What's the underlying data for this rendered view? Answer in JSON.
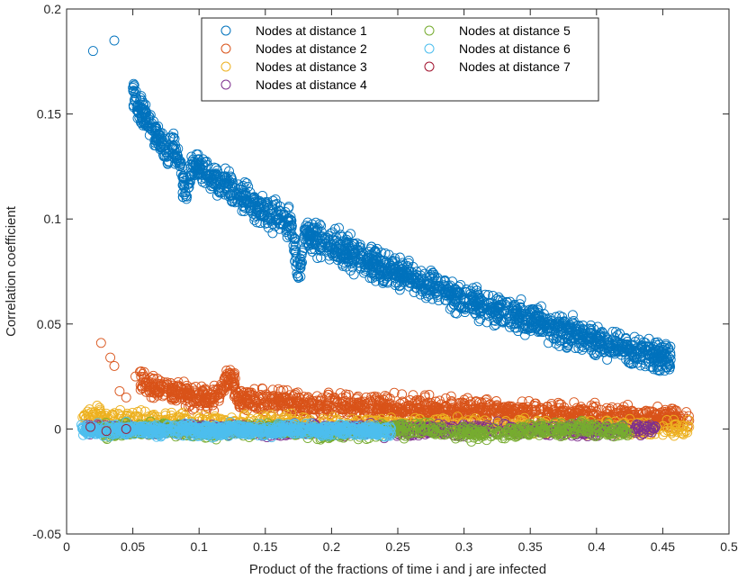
{
  "chart_data": {
    "type": "scatter",
    "title": "",
    "xlabel": "Product of the fractions of time i and j are infected",
    "ylabel": "Correlation coefficient",
    "xlim": [
      0,
      0.5
    ],
    "ylim": [
      -0.05,
      0.2
    ],
    "xticks": [
      0,
      0.05,
      0.1,
      0.15,
      0.2,
      0.25,
      0.3,
      0.35,
      0.4,
      0.45,
      0.5
    ],
    "xtick_labels": [
      "0",
      "0.05",
      "0.1",
      "0.15",
      "0.2",
      "0.25",
      "0.3",
      "0.35",
      "0.4",
      "0.45",
      "0.5"
    ],
    "yticks": [
      -0.05,
      0,
      0.05,
      0.1,
      0.15,
      0.2
    ],
    "ytick_labels": [
      "-0.05",
      "0",
      "0.05",
      "0.1",
      "0.15",
      "0.2"
    ],
    "grid": false,
    "legend_position": "top-center",
    "series": [
      {
        "name": "Nodes at distance 1",
        "color": "#0072BD",
        "points": [
          [
            0.02,
            0.18
          ],
          [
            0.036,
            0.185
          ],
          [
            0.052,
            0.158
          ],
          [
            0.055,
            0.153
          ],
          [
            0.06,
            0.147
          ],
          [
            0.065,
            0.142
          ],
          [
            0.07,
            0.138
          ],
          [
            0.075,
            0.132
          ],
          [
            0.08,
            0.135
          ],
          [
            0.085,
            0.128
          ],
          [
            0.09,
            0.111
          ],
          [
            0.095,
            0.126
          ],
          [
            0.1,
            0.124
          ],
          [
            0.11,
            0.119
          ],
          [
            0.12,
            0.115
          ],
          [
            0.13,
            0.112
          ],
          [
            0.14,
            0.107
          ],
          [
            0.15,
            0.104
          ],
          [
            0.16,
            0.1
          ],
          [
            0.17,
            0.097
          ],
          [
            0.175,
            0.072
          ],
          [
            0.18,
            0.094
          ],
          [
            0.19,
            0.091
          ],
          [
            0.2,
            0.088
          ],
          [
            0.21,
            0.085
          ],
          [
            0.22,
            0.082
          ],
          [
            0.23,
            0.079
          ],
          [
            0.24,
            0.077
          ],
          [
            0.25,
            0.074
          ],
          [
            0.26,
            0.072
          ],
          [
            0.27,
            0.069
          ],
          [
            0.28,
            0.067
          ],
          [
            0.29,
            0.064
          ],
          [
            0.3,
            0.062
          ],
          [
            0.31,
            0.06
          ],
          [
            0.32,
            0.058
          ],
          [
            0.33,
            0.056
          ],
          [
            0.34,
            0.054
          ],
          [
            0.35,
            0.052
          ],
          [
            0.36,
            0.05
          ],
          [
            0.37,
            0.048
          ],
          [
            0.38,
            0.046
          ],
          [
            0.39,
            0.044
          ],
          [
            0.4,
            0.042
          ],
          [
            0.41,
            0.04
          ],
          [
            0.42,
            0.039
          ],
          [
            0.43,
            0.037
          ],
          [
            0.44,
            0.035
          ],
          [
            0.45,
            0.034
          ],
          [
            0.456,
            0.033
          ]
        ]
      },
      {
        "name": "Nodes at distance 2",
        "color": "#D95319",
        "points": [
          [
            0.026,
            0.041
          ],
          [
            0.033,
            0.034
          ],
          [
            0.036,
            0.03
          ],
          [
            0.04,
            0.018
          ],
          [
            0.045,
            0.015
          ],
          [
            0.052,
            0.025
          ],
          [
            0.06,
            0.022
          ],
          [
            0.07,
            0.019
          ],
          [
            0.08,
            0.018
          ],
          [
            0.09,
            0.016
          ],
          [
            0.1,
            0.015
          ],
          [
            0.11,
            0.014
          ],
          [
            0.125,
            0.025
          ],
          [
            0.13,
            0.014
          ],
          [
            0.15,
            0.013
          ],
          [
            0.17,
            0.012
          ],
          [
            0.19,
            0.011
          ],
          [
            0.21,
            0.011
          ],
          [
            0.23,
            0.01
          ],
          [
            0.25,
            0.01
          ],
          [
            0.27,
            0.009
          ],
          [
            0.29,
            0.009
          ],
          [
            0.31,
            0.008
          ],
          [
            0.33,
            0.008
          ],
          [
            0.35,
            0.007
          ],
          [
            0.37,
            0.007
          ],
          [
            0.39,
            0.006
          ],
          [
            0.41,
            0.006
          ],
          [
            0.43,
            0.005
          ],
          [
            0.45,
            0.005
          ],
          [
            0.46,
            0.004
          ],
          [
            0.47,
            0.004
          ]
        ]
      },
      {
        "name": "Nodes at distance 3",
        "color": "#EDB120",
        "points": [
          [
            0.02,
            0.007
          ],
          [
            0.05,
            0.005
          ],
          [
            0.08,
            0.004
          ],
          [
            0.12,
            0.003
          ],
          [
            0.16,
            0.003
          ],
          [
            0.2,
            0.002
          ],
          [
            0.24,
            0.002
          ],
          [
            0.28,
            0.002
          ],
          [
            0.32,
            0.001
          ],
          [
            0.36,
            0.001
          ],
          [
            0.4,
            0.001
          ],
          [
            0.44,
            0.0
          ],
          [
            0.46,
            0.0
          ],
          [
            0.47,
            0.001
          ]
        ]
      },
      {
        "name": "Nodes at distance 4",
        "color": "#7E2F8E",
        "points": [
          [
            0.02,
            0.0
          ],
          [
            0.06,
            -0.001
          ],
          [
            0.1,
            0.0
          ],
          [
            0.15,
            -0.001
          ],
          [
            0.2,
            0.0
          ],
          [
            0.25,
            -0.001
          ],
          [
            0.3,
            0.0
          ],
          [
            0.35,
            0.0
          ],
          [
            0.4,
            -0.001
          ],
          [
            0.44,
            0.0
          ]
        ]
      },
      {
        "name": "Nodes at distance 5",
        "color": "#77AC30",
        "points": [
          [
            0.03,
            -0.001
          ],
          [
            0.07,
            0.0
          ],
          [
            0.11,
            -0.002
          ],
          [
            0.15,
            0.0
          ],
          [
            0.19,
            -0.002
          ],
          [
            0.23,
            -0.001
          ],
          [
            0.27,
            0.0
          ],
          [
            0.31,
            -0.002
          ],
          [
            0.35,
            -0.001
          ],
          [
            0.39,
            0.0
          ],
          [
            0.42,
            -0.001
          ]
        ]
      },
      {
        "name": "Nodes at distance 6",
        "color": "#4DBEEE",
        "points": [
          [
            0.012,
            0.0
          ],
          [
            0.03,
            -0.001
          ],
          [
            0.05,
            0.0
          ],
          [
            0.07,
            -0.001
          ],
          [
            0.09,
            0.0
          ],
          [
            0.11,
            -0.001
          ],
          [
            0.13,
            0.0
          ],
          [
            0.15,
            -0.001
          ],
          [
            0.17,
            0.0
          ],
          [
            0.19,
            -0.001
          ],
          [
            0.21,
            0.0
          ],
          [
            0.24,
            -0.001
          ]
        ]
      },
      {
        "name": "Nodes at distance 7",
        "color": "#A2142F",
        "points": [
          [
            0.018,
            0.001
          ],
          [
            0.03,
            -0.001
          ],
          [
            0.045,
            0.0
          ]
        ]
      }
    ]
  }
}
